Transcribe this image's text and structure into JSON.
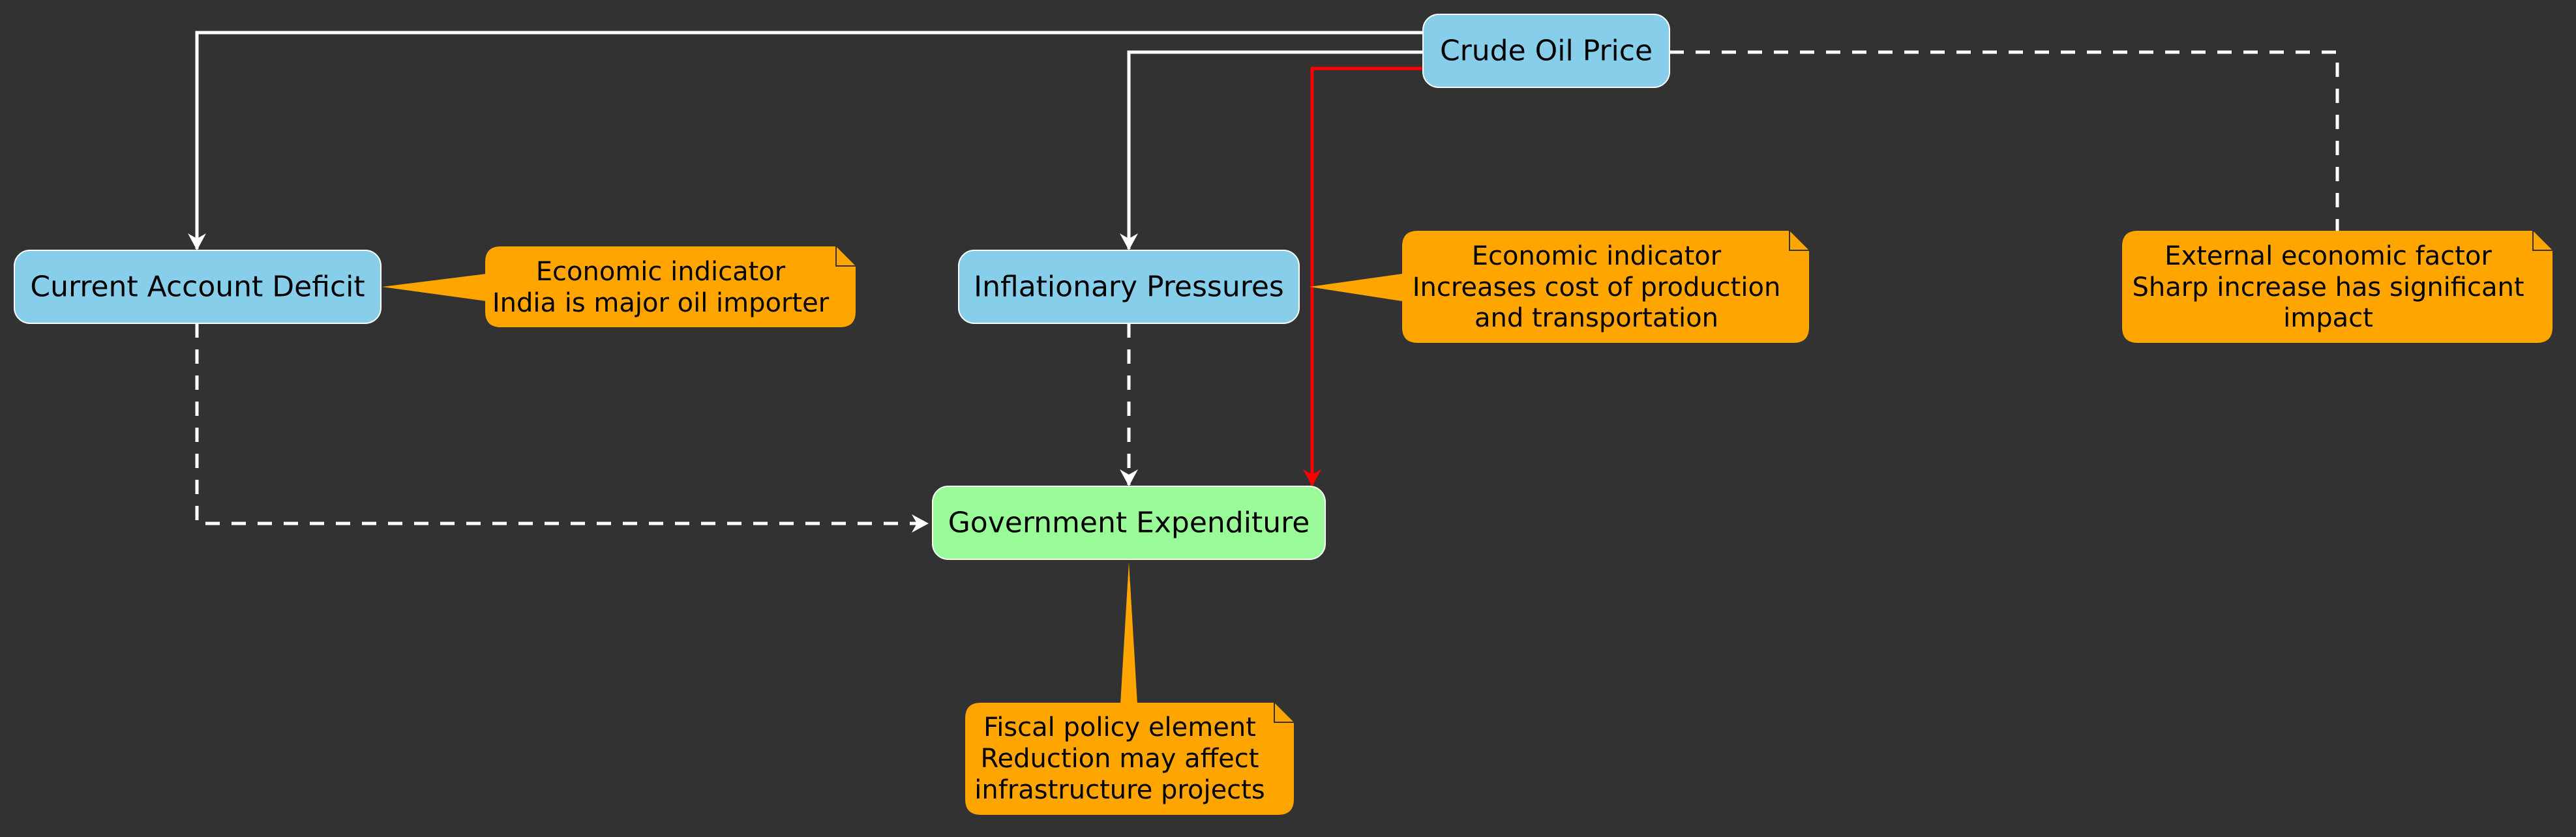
{
  "nodes": {
    "crude_oil_price": {
      "label": "Crude Oil Price",
      "color": "#87CEEB"
    },
    "current_account_deficit": {
      "label": "Current Account Deficit",
      "color": "#87CEEB"
    },
    "inflationary_pressures": {
      "label": "Inflationary Pressures",
      "color": "#87CEEB"
    },
    "government_expenditure": {
      "label": "Government Expenditure",
      "color": "#98FB98"
    }
  },
  "notes": {
    "cad": {
      "lines": [
        "Economic indicator",
        "India is major oil importer"
      ],
      "color": "#FFA500"
    },
    "inflation": {
      "lines": [
        "Economic indicator",
        "Increases cost of production",
        "and transportation"
      ],
      "color": "#FFA500"
    },
    "crude": {
      "lines": [
        "External economic factor",
        "Sharp increase has significant",
        "impact"
      ],
      "color": "#FFA500"
    },
    "government": {
      "lines": [
        "Fiscal policy element",
        "Reduction may affect",
        "infrastructure projects"
      ],
      "color": "#FFA500"
    }
  },
  "edges": [
    {
      "from": "crude_oil_price",
      "to": "current_account_deficit",
      "style": "solid",
      "color": "#FFFFFF"
    },
    {
      "from": "crude_oil_price",
      "to": "inflationary_pressures",
      "style": "solid",
      "color": "#FFFFFF"
    },
    {
      "from": "crude_oil_price",
      "to": "government_expenditure",
      "style": "solid",
      "color": "#FF0000"
    },
    {
      "from": "current_account_deficit",
      "to": "government_expenditure",
      "style": "dashed",
      "color": "#FFFFFF"
    },
    {
      "from": "inflationary_pressures",
      "to": "government_expenditure",
      "style": "dashed",
      "color": "#FFFFFF"
    }
  ],
  "colors": {
    "background": "#323232",
    "node_border": "#FFFFFF",
    "note_fold": "#333333"
  }
}
